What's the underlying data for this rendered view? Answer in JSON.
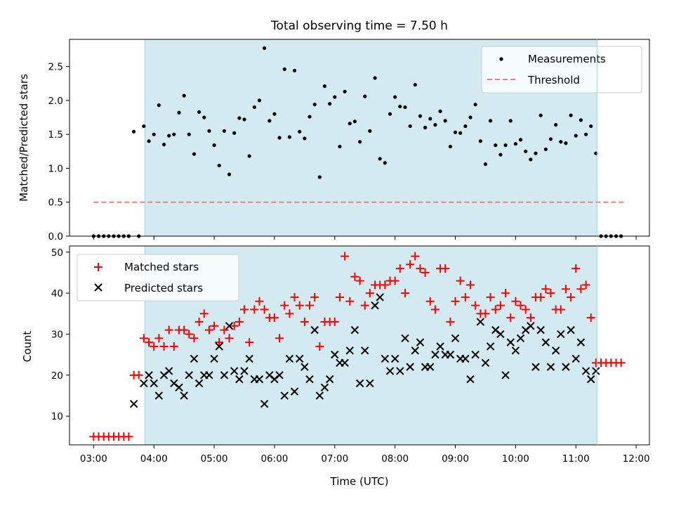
{
  "chart_data": [
    {
      "type": "scatter",
      "title": "Total observing time = 7.50 h",
      "ylabel": "Matched/Predicted stars",
      "xlabel": "",
      "xlim": [
        2.6,
        12.22
      ],
      "ylim": [
        0,
        2.9
      ],
      "yticks": [
        0.0,
        0.5,
        1.0,
        1.5,
        2.0,
        2.5
      ],
      "ytick_labels": [
        "0.0",
        "0.5",
        "1.0",
        "1.5",
        "2.0",
        "2.5"
      ],
      "shaded_interval": [
        3.85,
        11.35
      ],
      "shade_color": "#d3eaf0",
      "legend_position": "upper right",
      "series": [
        {
          "name": "Measurements",
          "marker": "dot",
          "color": "#000000",
          "x": [
            3.0,
            3.083,
            3.167,
            3.25,
            3.333,
            3.417,
            3.5,
            3.583,
            3.667,
            3.75,
            3.833,
            3.917,
            4.0,
            4.083,
            4.167,
            4.25,
            4.333,
            4.417,
            4.5,
            4.583,
            4.667,
            4.75,
            4.833,
            4.917,
            5.0,
            5.083,
            5.167,
            5.25,
            5.333,
            5.417,
            5.5,
            5.583,
            5.667,
            5.75,
            5.833,
            5.917,
            6.0,
            6.083,
            6.167,
            6.25,
            6.333,
            6.417,
            6.5,
            6.583,
            6.667,
            6.75,
            6.833,
            6.917,
            7.0,
            7.083,
            7.167,
            7.25,
            7.333,
            7.417,
            7.5,
            7.583,
            7.667,
            7.75,
            7.833,
            7.917,
            8.0,
            8.083,
            8.167,
            8.25,
            8.333,
            8.417,
            8.5,
            8.583,
            8.667,
            8.75,
            8.833,
            8.917,
            9.0,
            9.083,
            9.167,
            9.25,
            9.333,
            9.417,
            9.5,
            9.583,
            9.667,
            9.75,
            9.833,
            9.917,
            10.0,
            10.083,
            10.167,
            10.25,
            10.333,
            10.417,
            10.5,
            10.583,
            10.667,
            10.75,
            10.833,
            10.917,
            11.0,
            11.083,
            11.167,
            11.25,
            11.333,
            11.417,
            11.5,
            11.583,
            11.667,
            11.75
          ],
          "y": [
            0,
            0,
            0,
            0,
            0,
            0,
            0,
            0,
            1.54,
            0,
            1.62,
            1.4,
            1.5,
            1.93,
            1.35,
            1.48,
            1.5,
            1.82,
            2.07,
            1.5,
            1.21,
            1.83,
            1.75,
            1.55,
            1.34,
            1.04,
            1.55,
            0.91,
            1.52,
            1.74,
            1.72,
            1.18,
            1.9,
            2.0,
            2.77,
            1.7,
            1.8,
            1.45,
            2.46,
            1.46,
            2.44,
            1.54,
            1.44,
            1.76,
            1.94,
            0.87,
            2.21,
            1.95,
            2.05,
            1.32,
            2.13,
            1.66,
            1.69,
            1.39,
            2.06,
            1.55,
            2.33,
            1.14,
            1.08,
            1.8,
            2.05,
            1.91,
            1.9,
            1.62,
            2.23,
            1.77,
            1.6,
            1.73,
            1.64,
            1.84,
            1.7,
            1.32,
            1.53,
            1.52,
            1.62,
            1.75,
            1.94,
            1.4,
            1.06,
            1.7,
            1.34,
            1.2,
            1.34,
            1.7,
            1.36,
            1.42,
            1.25,
            1.13,
            1.22,
            1.78,
            1.28,
            1.43,
            1.64,
            1.39,
            1.37,
            1.78,
            1.48,
            1.71,
            1.5,
            1.62,
            1.22,
            0,
            0,
            0,
            0,
            0
          ]
        },
        {
          "name": "Threshold",
          "marker": "dashed-line",
          "color": "#f08080",
          "x": [
            3.0,
            11.83
          ],
          "y": [
            0.5,
            0.5
          ]
        }
      ]
    },
    {
      "type": "scatter",
      "title": "",
      "xlabel": "Time (UTC)",
      "ylabel": "Count",
      "xlim": [
        2.6,
        12.22
      ],
      "ylim": [
        3,
        51.5
      ],
      "yticks": [
        10,
        20,
        30,
        40,
        50
      ],
      "ytick_labels": [
        "10",
        "20",
        "30",
        "40",
        "50"
      ],
      "xticks": [
        3,
        4,
        5,
        6,
        7,
        8,
        9,
        10,
        11,
        12
      ],
      "xtick_labels": [
        "03:00",
        "04:00",
        "05:00",
        "06:00",
        "07:00",
        "08:00",
        "09:00",
        "10:00",
        "11:00",
        "12:00"
      ],
      "shaded_interval": [
        3.85,
        11.35
      ],
      "shade_color": "#d3eaf0",
      "legend_position": "upper left",
      "series": [
        {
          "name": "Matched stars",
          "marker": "plus",
          "color": "#ff0000",
          "x": [
            3.0,
            3.083,
            3.167,
            3.25,
            3.333,
            3.417,
            3.5,
            3.583,
            3.667,
            3.75,
            3.833,
            3.917,
            4.0,
            4.083,
            4.167,
            4.25,
            4.333,
            4.417,
            4.5,
            4.583,
            4.667,
            4.75,
            4.833,
            4.917,
            5.0,
            5.083,
            5.167,
            5.25,
            5.333,
            5.417,
            5.5,
            5.583,
            5.667,
            5.75,
            5.833,
            5.917,
            6.0,
            6.083,
            6.167,
            6.25,
            6.333,
            6.417,
            6.5,
            6.583,
            6.667,
            6.75,
            6.833,
            6.917,
            7.0,
            7.083,
            7.167,
            7.25,
            7.333,
            7.417,
            7.5,
            7.583,
            7.667,
            7.75,
            7.833,
            7.917,
            8.0,
            8.083,
            8.167,
            8.25,
            8.333,
            8.417,
            8.5,
            8.583,
            8.667,
            8.75,
            8.833,
            8.917,
            9.0,
            9.083,
            9.167,
            9.25,
            9.333,
            9.417,
            9.5,
            9.583,
            9.667,
            9.75,
            9.833,
            9.917,
            10.0,
            10.083,
            10.167,
            10.25,
            10.333,
            10.417,
            10.5,
            10.583,
            10.667,
            10.75,
            10.833,
            10.917,
            11.0,
            11.083,
            11.167,
            11.25,
            11.333,
            11.417,
            11.5,
            11.583,
            11.667,
            11.75
          ],
          "y": [
            5,
            5,
            5,
            5,
            5,
            5,
            5,
            5,
            20,
            20,
            29,
            28,
            27,
            29,
            27,
            31,
            27,
            31,
            31,
            30,
            29,
            33,
            35,
            31,
            32,
            28,
            31,
            29,
            32,
            33,
            36,
            28,
            36,
            38,
            36,
            34,
            34,
            29,
            37,
            35,
            39,
            37,
            33,
            37,
            39,
            27,
            33,
            33,
            33,
            39,
            49,
            38,
            44,
            43,
            37,
            40,
            42,
            42,
            42,
            43,
            43,
            46,
            40,
            47,
            49,
            46,
            45,
            38,
            36,
            46,
            46,
            33,
            38,
            43,
            39,
            42,
            37,
            35,
            35,
            39,
            36,
            37,
            40,
            34,
            38,
            37,
            36,
            34,
            39,
            39,
            41,
            40,
            36,
            36,
            41,
            39,
            46,
            41,
            42,
            34,
            23,
            23,
            23,
            23,
            23,
            23
          ]
        },
        {
          "name": "Predicted stars",
          "marker": "x",
          "color": "#000000",
          "x": [
            3.667,
            3.833,
            3.917,
            4.0,
            4.083,
            4.167,
            4.25,
            4.333,
            4.417,
            4.5,
            4.583,
            4.667,
            4.75,
            4.833,
            4.917,
            5.0,
            5.083,
            5.167,
            5.25,
            5.333,
            5.417,
            5.5,
            5.583,
            5.667,
            5.75,
            5.833,
            5.917,
            6.0,
            6.083,
            6.167,
            6.25,
            6.333,
            6.417,
            6.5,
            6.583,
            6.667,
            6.75,
            6.833,
            6.917,
            7.0,
            7.083,
            7.167,
            7.25,
            7.333,
            7.417,
            7.5,
            7.583,
            7.667,
            7.75,
            7.833,
            7.917,
            8.0,
            8.083,
            8.167,
            8.25,
            8.333,
            8.417,
            8.5,
            8.583,
            8.667,
            8.75,
            8.833,
            8.917,
            9.0,
            9.083,
            9.167,
            9.25,
            9.333,
            9.417,
            9.5,
            9.583,
            9.667,
            9.75,
            9.833,
            9.917,
            10.0,
            10.083,
            10.167,
            10.25,
            10.333,
            10.417,
            10.5,
            10.583,
            10.667,
            10.75,
            10.833,
            10.917,
            11.0,
            11.083,
            11.167,
            11.25,
            11.333
          ],
          "y": [
            13,
            18,
            20,
            18,
            15,
            20,
            21,
            18,
            17,
            15,
            20,
            24,
            18,
            20,
            20,
            24,
            27,
            20,
            32,
            21,
            19,
            21,
            24,
            19,
            19,
            13,
            20,
            19,
            20,
            15,
            24,
            16,
            24,
            22,
            19,
            31,
            15,
            17,
            19,
            25,
            23,
            23,
            26,
            31,
            18,
            26,
            18,
            37,
            39,
            24,
            21,
            24,
            21,
            29,
            22,
            26,
            28,
            22,
            22,
            25,
            27,
            25,
            25,
            29,
            24,
            24,
            19,
            25,
            33,
            23,
            27,
            31,
            30,
            20,
            28,
            26,
            29,
            31,
            32,
            22,
            31,
            28,
            22,
            26,
            30,
            22,
            31,
            24,
            28,
            21,
            19,
            21
          ]
        }
      ]
    }
  ]
}
